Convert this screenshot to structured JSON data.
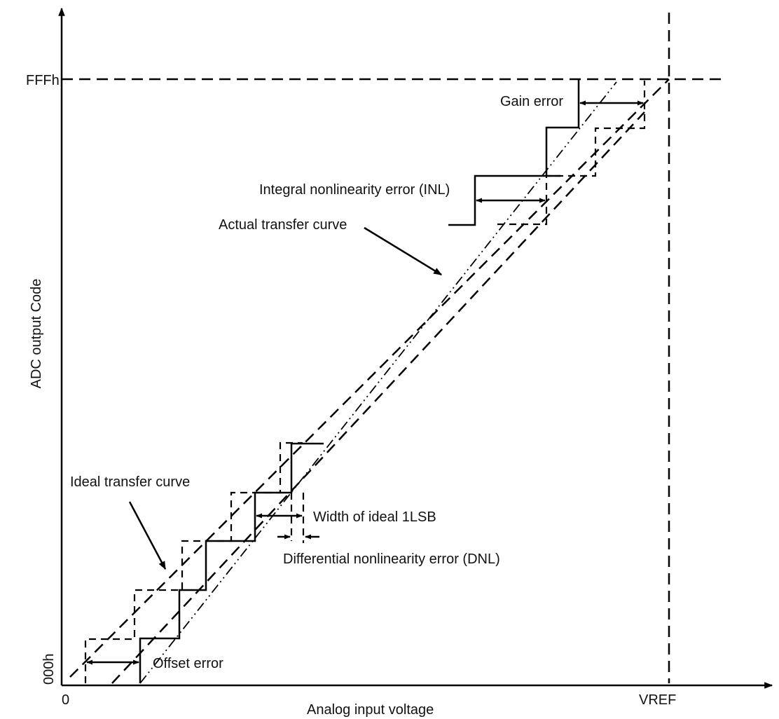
{
  "axes": {
    "y_label": "ADC output Code",
    "x_label": "Analog input voltage",
    "y_top_tick": "FFFh",
    "y_bottom_tick": "000h",
    "x_left_tick": "0",
    "x_right_tick": "VREF"
  },
  "annotations": {
    "gain_error": "Gain error",
    "inl": "Integral nonlinearity error (INL)",
    "actual_curve": "Actual transfer curve",
    "ideal_curve": "Ideal transfer curve",
    "width_1lsb": "Width of ideal 1LSB",
    "dnl": "Differential nonlinearity error (DNL)",
    "offset_error": "Offset error"
  }
}
